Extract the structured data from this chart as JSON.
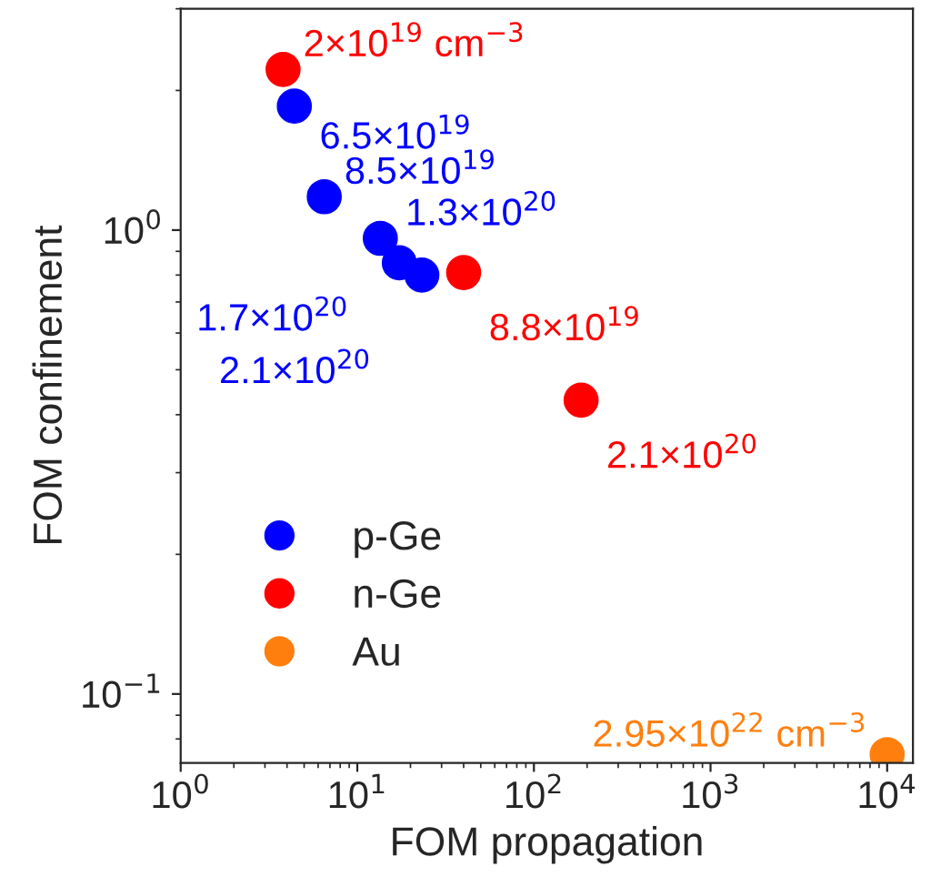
{
  "chart_data": {
    "type": "scatter",
    "xlabel": "FOM propagation",
    "ylabel": "FOM confinement",
    "log": "xy",
    "xlim": [
      1,
      14000
    ],
    "ylim": [
      0.071,
      3.0
    ],
    "xticks": [
      {
        "value": 1,
        "label": "10$^{0}$"
      },
      {
        "value": 10,
        "label": "10$^{1}$"
      },
      {
        "value": 100,
        "label": "10$^{2}$"
      },
      {
        "value": 1000,
        "label": "10$^{3}$"
      },
      {
        "value": 10000,
        "label": "10$^{4}$"
      }
    ],
    "yticks": [
      {
        "value": 0.1,
        "label": "10$^{−1}$"
      },
      {
        "value": 1,
        "label": "10$^{0}$"
      }
    ],
    "legend": "bottom left",
    "marker": "circle",
    "grid": false,
    "series": [
      {
        "name": "p-Ge",
        "color": "#0000ff",
        "x": [
          4.4,
          6.5,
          13.5,
          17.3,
          23.2
        ],
        "values": [
          1.85,
          1.18,
          0.96,
          0.85,
          0.8
        ]
      },
      {
        "name": "n-Ge",
        "color": "#ff0000",
        "x": [
          3.8,
          40,
          185
        ],
        "values": [
          2.22,
          0.81,
          0.43
        ]
      },
      {
        "name": "Au",
        "color": "#ff7f0e",
        "x": [
          10000
        ],
        "values": [
          0.074
        ]
      }
    ],
    "annotations": [
      {
        "text": "2×10$^{19}$ cm$^{−3}$",
        "x": 3.8,
        "y": 2.22
      },
      {
        "text": "6.5×10$^{19}$",
        "x": 4.4,
        "y": 1.85
      },
      {
        "text": "8.5×10$^{19}$",
        "x": 6.5,
        "y": 1.18
      },
      {
        "text": "1.3×10$^{20}$",
        "x": 13.5,
        "y": 0.96
      },
      {
        "text": "1.7×10$^{20}$",
        "x": 17.3,
        "y": 0.85
      },
      {
        "text": "2.1×10$^{20}$",
        "x": 23.2,
        "y": 0.8
      },
      {
        "text": "8.8×10$^{19}$",
        "x": 40,
        "y": 0.81
      },
      {
        "text": "2.1×10$^{20}$",
        "x": 185,
        "y": 0.43
      },
      {
        "text": "2.95×10$^{22}$ cm$^{−3}$",
        "x": 10000,
        "y": 0.074
      }
    ]
  }
}
